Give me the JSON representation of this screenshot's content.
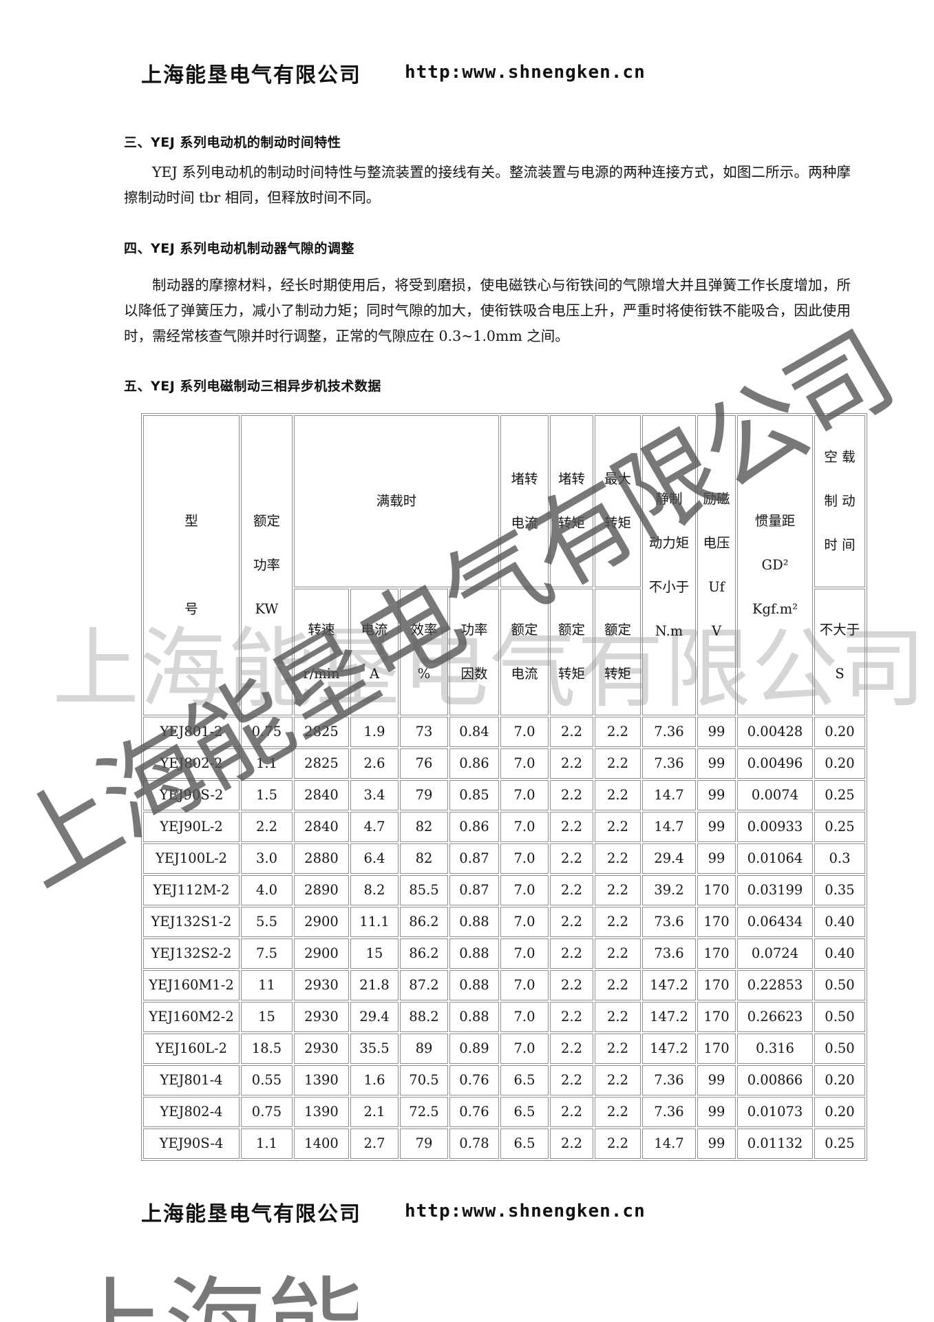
{
  "page": {
    "header": {
      "company": "上海能垦电气有限公司",
      "url": "http:www.shnengken.cn"
    },
    "footer": {
      "company": "上海能垦电气有限公司",
      "url": "http:www.shnengken.cn"
    },
    "watermark": {
      "text": "上海能垦电气有限公司",
      "light_color": "#d6d6d6",
      "dark_color": "#525252"
    }
  },
  "sections": [
    {
      "heading": "三、YEJ 系列电动机的制动时间特性",
      "body": "YEJ 系列电动机的制动时间特性与整流装置的接线有关。整流装置与电源的两种连接方式，如图二所示。两种摩擦制动时间 tbr 相同，但释放时间不同。"
    },
    {
      "heading": "四、YEJ 系列电动机制动器气隙的调整",
      "body": "制动器的摩擦材料，经长时期使用后，将受到磨损，使电磁铁心与衔铁间的气隙增大并且弹簧工作长度增加，所以降低了弹簧压力，减小了制动力矩；同时气隙的加大，使衔铁吸合电压上升，严重时将使衔铁不能吸合，因此使用时，需经常核查气隙并时行调整，正常的气隙应在 0.3~1.0mm 之间。"
    },
    {
      "heading": "五、YEJ 系列电磁制动三相异步机技术数据"
    }
  ],
  "table": {
    "header": {
      "model": "型\n\n号",
      "rated_power": "额定\n功率\nKW",
      "full_load": "满载时",
      "speed": "转速\nr/min",
      "current": "电流\nA",
      "efficiency": "效率\n%",
      "power_factor": "功率\n因数",
      "locked_rotor_current": "堵转\n电流",
      "locked_rotor_torque": "堵转\n转矩",
      "max_torque": "最大\n转矩",
      "rated_current_ratio": "额定\n电流",
      "rated_torque_ratio_1": "额定\n转矩",
      "rated_torque_ratio_2": "额定\n转矩",
      "static_brake_torque": "静制\n动力矩\n不小于\nN.m",
      "excitation_voltage": "励磁\n电压\nUf\nV",
      "inertia": "惯量距\nGD²\nKgf.m²",
      "no_load_brake_time": "空 载\n制 动\n时 间",
      "not_greater_than": "不大于\nS"
    },
    "rows": [
      [
        "YEJ801-2",
        "0.75",
        "2825",
        "1.9",
        "73",
        "0.84",
        "7.0",
        "2.2",
        "2.2",
        "7.36",
        "99",
        "0.00428",
        "0.20"
      ],
      [
        "YEJ802-2",
        "1.1",
        "2825",
        "2.6",
        "76",
        "0.86",
        "7.0",
        "2.2",
        "2.2",
        "7.36",
        "99",
        "0.00496",
        "0.20"
      ],
      [
        "YEJ90S-2",
        "1.5",
        "2840",
        "3.4",
        "79",
        "0.85",
        "7.0",
        "2.2",
        "2.2",
        "14.7",
        "99",
        "0.0074",
        "0.25"
      ],
      [
        "YEJ90L-2",
        "2.2",
        "2840",
        "4.7",
        "82",
        "0.86",
        "7.0",
        "2.2",
        "2.2",
        "14.7",
        "99",
        "0.00933",
        "0.25"
      ],
      [
        "YEJ100L-2",
        "3.0",
        "2880",
        "6.4",
        "82",
        "0.87",
        "7.0",
        "2.2",
        "2.2",
        "29.4",
        "99",
        "0.01064",
        "0.3"
      ],
      [
        "YEJ112M-2",
        "4.0",
        "2890",
        "8.2",
        "85.5",
        "0.87",
        "7.0",
        "2.2",
        "2.2",
        "39.2",
        "170",
        "0.03199",
        "0.35"
      ],
      [
        "YEJ132S1-2",
        "5.5",
        "2900",
        "11.1",
        "86.2",
        "0.88",
        "7.0",
        "2.2",
        "2.2",
        "73.6",
        "170",
        "0.06434",
        "0.40"
      ],
      [
        "YEJ132S2-2",
        "7.5",
        "2900",
        "15",
        "86.2",
        "0.88",
        "7.0",
        "2.2",
        "2.2",
        "73.6",
        "170",
        "0.0724",
        "0.40"
      ],
      [
        "YEJ160M1-2",
        "11",
        "2930",
        "21.8",
        "87.2",
        "0.88",
        "7.0",
        "2.2",
        "2.2",
        "147.2",
        "170",
        "0.22853",
        "0.50"
      ],
      [
        "YEJ160M2-2",
        "15",
        "2930",
        "29.4",
        "88.2",
        "0.88",
        "7.0",
        "2.2",
        "2.2",
        "147.2",
        "170",
        "0.26623",
        "0.50"
      ],
      [
        "YEJ160L-2",
        "18.5",
        "2930",
        "35.5",
        "89",
        "0.89",
        "7.0",
        "2.2",
        "2.2",
        "147.2",
        "170",
        "0.316",
        "0.50"
      ],
      [
        "YEJ801-4",
        "0.55",
        "1390",
        "1.6",
        "70.5",
        "0.76",
        "6.5",
        "2.2",
        "2.2",
        "7.36",
        "99",
        "0.00866",
        "0.20"
      ],
      [
        "YEJ802-4",
        "0.75",
        "1390",
        "2.1",
        "72.5",
        "0.76",
        "6.5",
        "2.2",
        "2.2",
        "7.36",
        "99",
        "0.01073",
        "0.20"
      ],
      [
        "YEJ90S-4",
        "1.1",
        "1400",
        "2.7",
        "79",
        "0.78",
        "6.5",
        "2.2",
        "2.2",
        "14.7",
        "99",
        "0.01132",
        "0.25"
      ]
    ]
  }
}
